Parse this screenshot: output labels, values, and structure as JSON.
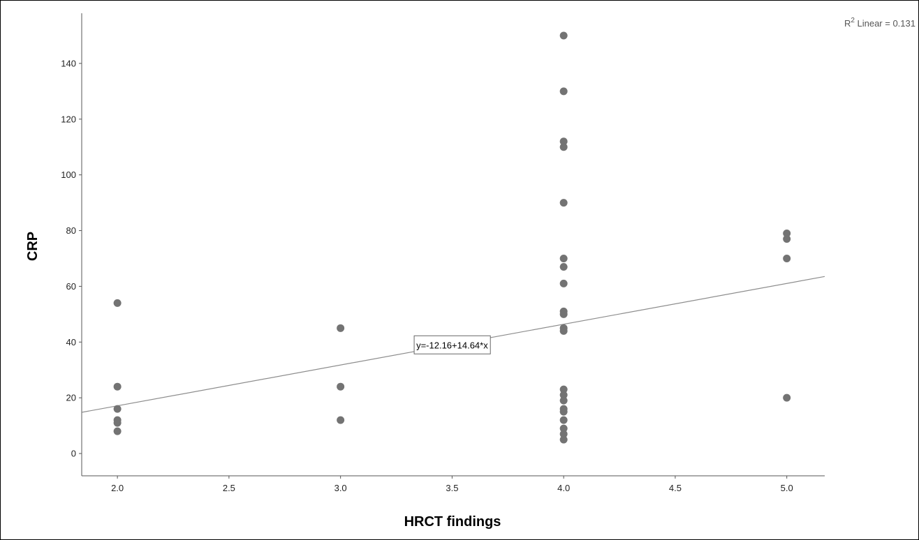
{
  "chart_data": {
    "type": "scatter",
    "xlabel": "HRCT findings",
    "ylabel": "CRP",
    "xlim": [
      1.84,
      5.17
    ],
    "ylim": [
      -8,
      158
    ],
    "x_ticks": [
      2.0,
      2.5,
      3.0,
      3.5,
      4.0,
      4.5,
      5.0
    ],
    "x_tick_labels": [
      "2.0",
      "2.5",
      "3.0",
      "3.5",
      "4.0",
      "4.5",
      "5.0"
    ],
    "y_ticks": [
      0,
      20,
      40,
      60,
      80,
      100,
      120,
      140
    ],
    "y_tick_labels": [
      "0",
      "20",
      "40",
      "60",
      "80",
      "100",
      "120",
      "140"
    ],
    "grid": false,
    "marker_color": "#737373",
    "line_color": "#8c8c8c",
    "points": [
      {
        "x": 2.0,
        "y": 54
      },
      {
        "x": 2.0,
        "y": 24
      },
      {
        "x": 2.0,
        "y": 16
      },
      {
        "x": 2.0,
        "y": 12
      },
      {
        "x": 2.0,
        "y": 11
      },
      {
        "x": 2.0,
        "y": 8
      },
      {
        "x": 3.0,
        "y": 45
      },
      {
        "x": 3.0,
        "y": 24
      },
      {
        "x": 3.0,
        "y": 12
      },
      {
        "x": 4.0,
        "y": 150
      },
      {
        "x": 4.0,
        "y": 130
      },
      {
        "x": 4.0,
        "y": 112
      },
      {
        "x": 4.0,
        "y": 110
      },
      {
        "x": 4.0,
        "y": 90
      },
      {
        "x": 4.0,
        "y": 70
      },
      {
        "x": 4.0,
        "y": 67
      },
      {
        "x": 4.0,
        "y": 61
      },
      {
        "x": 4.0,
        "y": 51
      },
      {
        "x": 4.0,
        "y": 50
      },
      {
        "x": 4.0,
        "y": 45
      },
      {
        "x": 4.0,
        "y": 44
      },
      {
        "x": 4.0,
        "y": 23
      },
      {
        "x": 4.0,
        "y": 21
      },
      {
        "x": 4.0,
        "y": 19
      },
      {
        "x": 4.0,
        "y": 16
      },
      {
        "x": 4.0,
        "y": 15
      },
      {
        "x": 4.0,
        "y": 12
      },
      {
        "x": 4.0,
        "y": 9
      },
      {
        "x": 4.0,
        "y": 7
      },
      {
        "x": 4.0,
        "y": 5
      },
      {
        "x": 5.0,
        "y": 79
      },
      {
        "x": 5.0,
        "y": 77
      },
      {
        "x": 5.0,
        "y": 70
      },
      {
        "x": 5.0,
        "y": 20
      }
    ],
    "fit_line": {
      "intercept": -12.16,
      "slope": 14.64
    },
    "fit_label": "y=-12.16+14.64*x",
    "fit_label_anchor": {
      "x": 3.5,
      "y": 39
    },
    "r2_label": {
      "prefix": "R",
      "sup": "2",
      "text": " Linear = 0.131"
    }
  }
}
